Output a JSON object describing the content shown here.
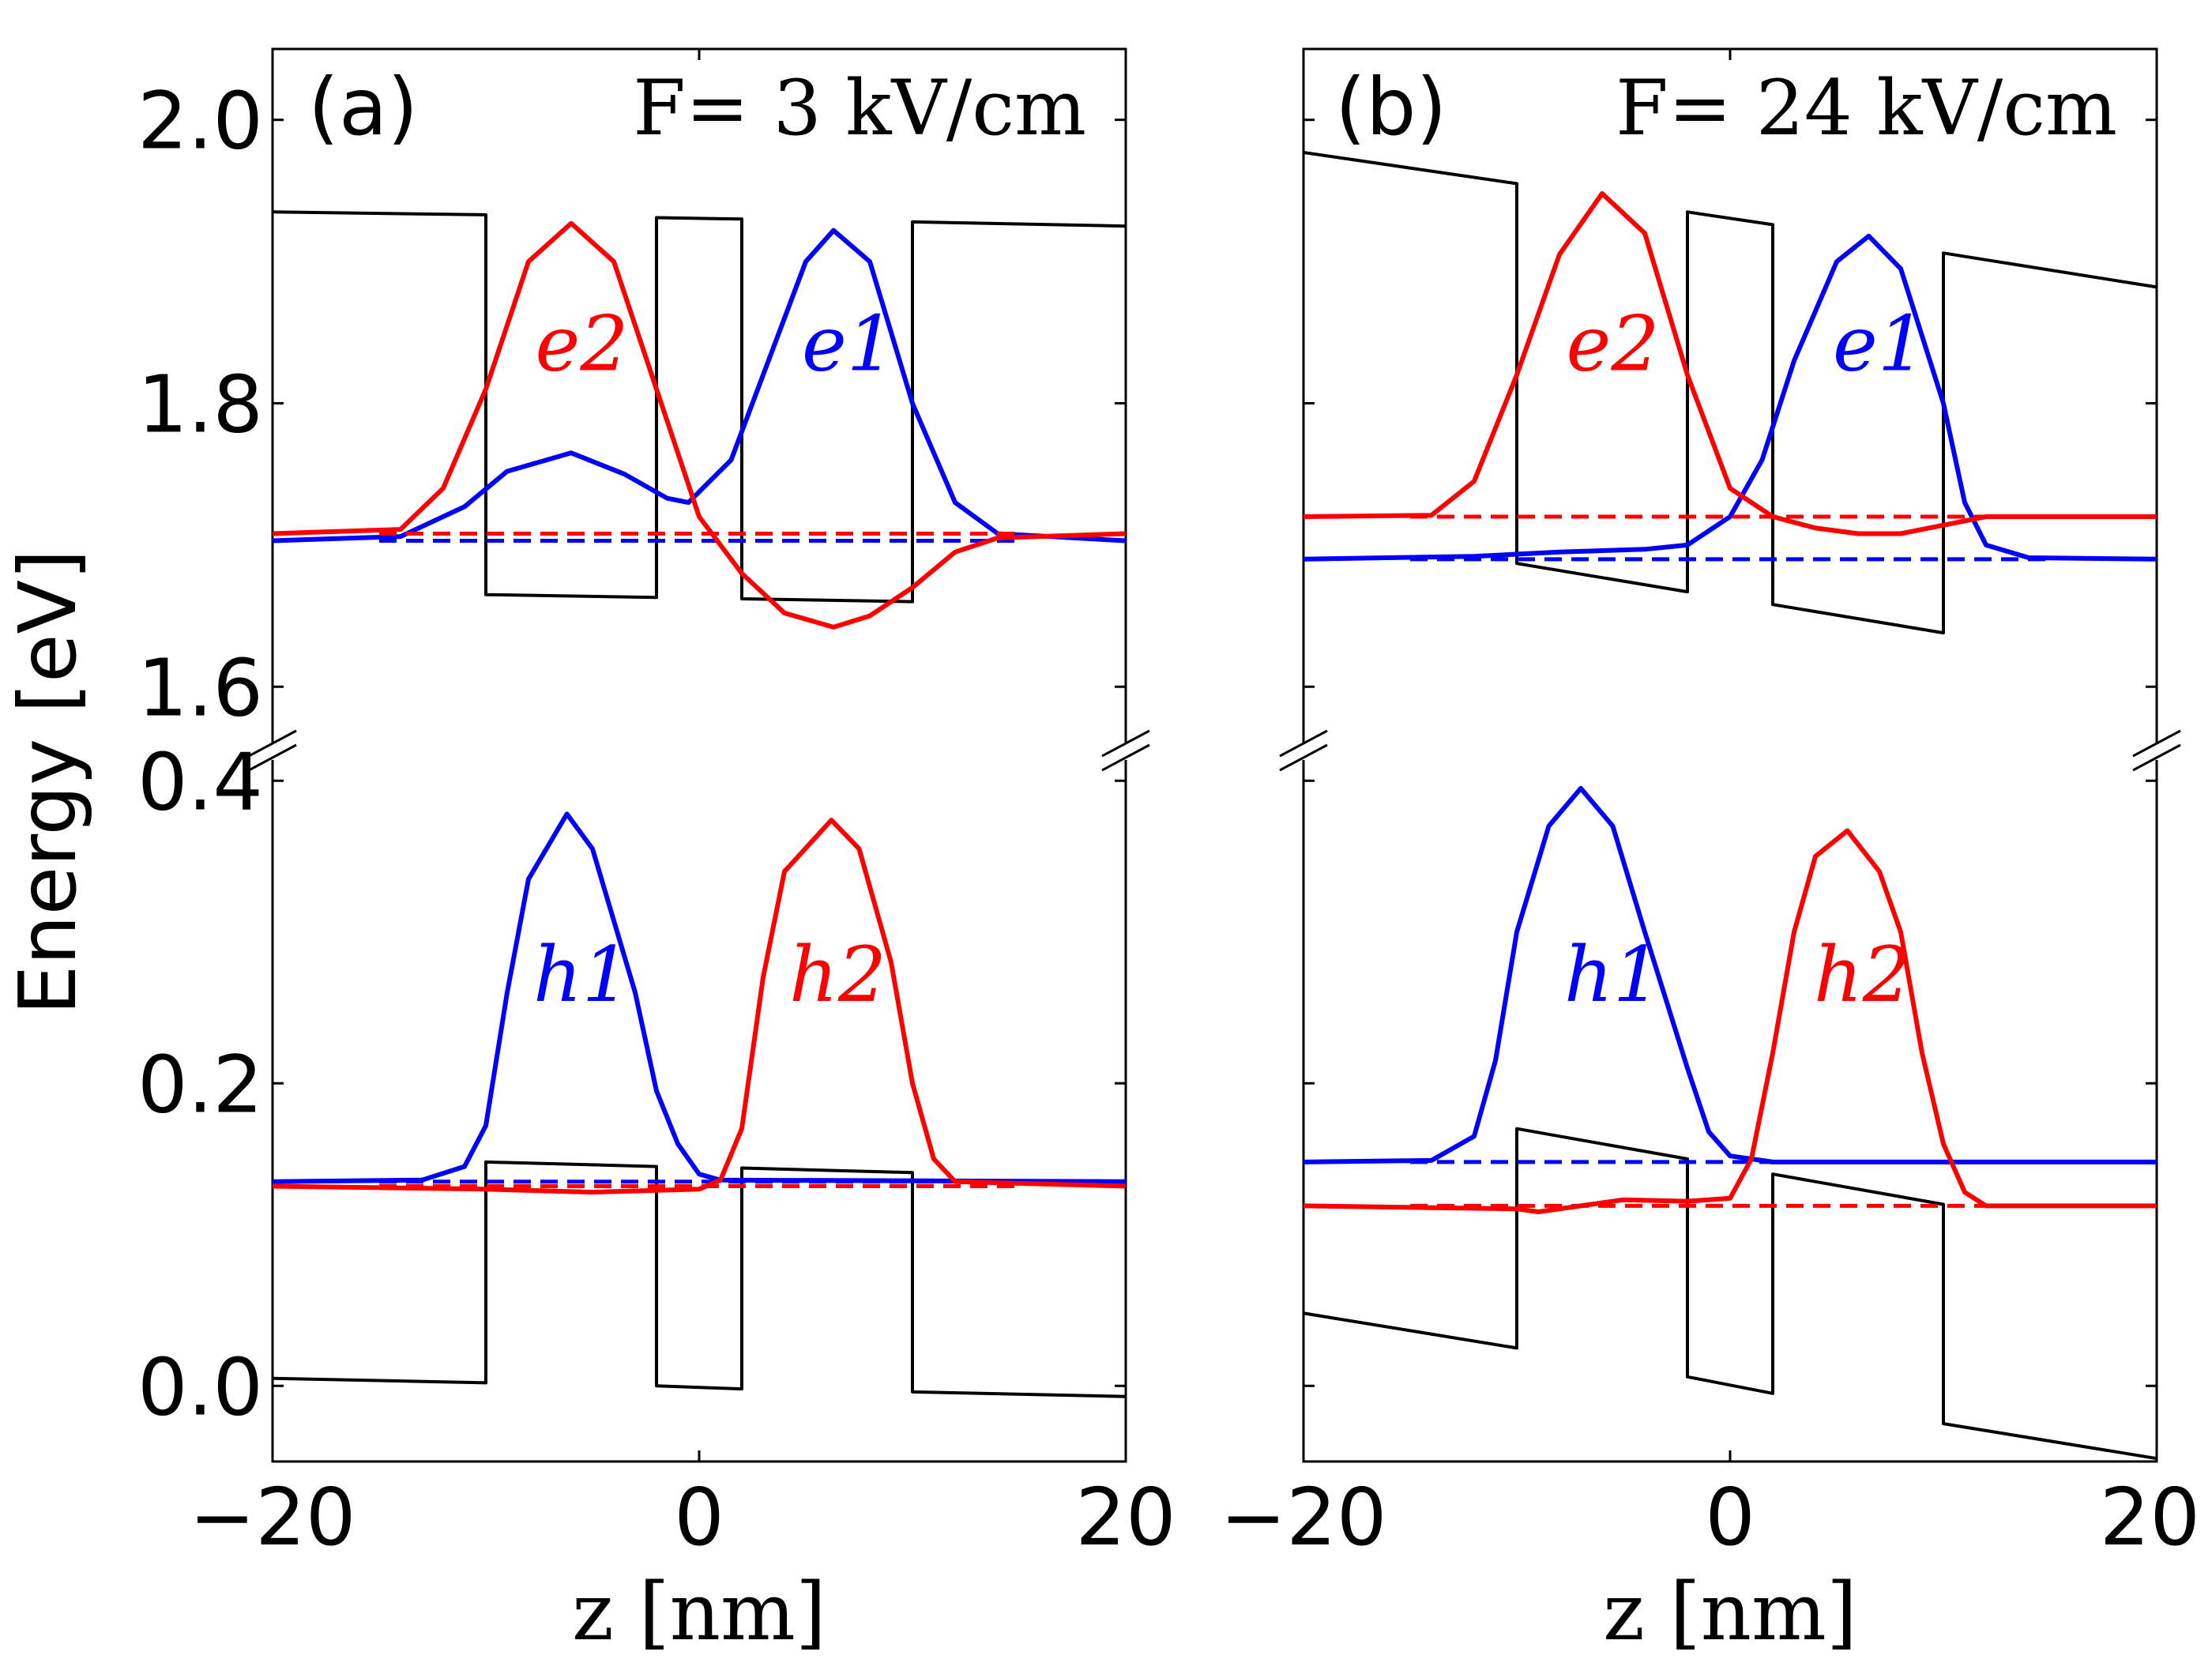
{
  "chart_data": {
    "type": "line",
    "ylabel": "Energy [eV]",
    "colors": {
      "potential": "#000000",
      "state1": "#0000ff",
      "state2": "#ff0000"
    },
    "panels": [
      {
        "label": "(a)",
        "field_text": "F= 3 kV/cm",
        "xlabel": "z [nm]",
        "xlim": [
          -20,
          20
        ],
        "x_ticks": [
          -20,
          0,
          20
        ],
        "x_tick_labels": [
          "−20",
          "0",
          "20"
        ],
        "upper_ylim": [
          1.555,
          2.05
        ],
        "upper_y_ticks": [
          1.6,
          1.8,
          2.0
        ],
        "upper_y_tick_labels": [
          "1.6",
          "1.8",
          "2.0"
        ],
        "lower_ylim": [
          -0.05,
          0.42
        ],
        "lower_y_ticks": [
          0.0,
          0.2,
          0.4
        ],
        "lower_y_tick_labels": [
          "0.0",
          "0.2",
          "0.4"
        ],
        "conduction_band": [
          [
            -20,
            1.935
          ],
          [
            -10,
            1.933
          ],
          [
            -10,
            1.665
          ],
          [
            -2,
            1.663
          ],
          [
            -2,
            1.931
          ],
          [
            2,
            1.93
          ],
          [
            2,
            1.662
          ],
          [
            10,
            1.66
          ],
          [
            10,
            1.928
          ],
          [
            20,
            1.925
          ]
        ],
        "valence_band": [
          [
            -20,
            0.005
          ],
          [
            -10,
            0.002
          ],
          [
            -10,
            0.148
          ],
          [
            -2,
            0.145
          ],
          [
            -2,
            0.0
          ],
          [
            2,
            -0.002
          ],
          [
            2,
            0.144
          ],
          [
            10,
            0.141
          ],
          [
            10,
            -0.004
          ],
          [
            20,
            -0.007
          ]
        ],
        "electron_levels": [
          {
            "name": "e1",
            "energy": 1.703,
            "color": "#0000ff",
            "label_pos": [
              7,
              1.84
            ],
            "points": [
              [
                -20,
                1.703
              ],
              [
                -14,
                1.706
              ],
              [
                -11,
                1.727
              ],
              [
                -9,
                1.752
              ],
              [
                -6,
                1.765
              ],
              [
                -3.5,
                1.75
              ],
              [
                -1.5,
                1.733
              ],
              [
                -0.5,
                1.73
              ],
              [
                1.5,
                1.76
              ],
              [
                3,
                1.82
              ],
              [
                5,
                1.9
              ],
              [
                6.3,
                1.922
              ],
              [
                8,
                1.9
              ],
              [
                10,
                1.8
              ],
              [
                12,
                1.73
              ],
              [
                14,
                1.708
              ],
              [
                20,
                1.703
              ]
            ]
          },
          {
            "name": "e2",
            "energy": 1.708,
            "color": "#ff0000",
            "label_pos": [
              -5.5,
              1.84
            ],
            "points": [
              [
                -20,
                1.708
              ],
              [
                -14,
                1.711
              ],
              [
                -12,
                1.74
              ],
              [
                -10,
                1.81
              ],
              [
                -8,
                1.9
              ],
              [
                -6,
                1.927
              ],
              [
                -4,
                1.9
              ],
              [
                -2,
                1.81
              ],
              [
                0,
                1.72
              ],
              [
                2,
                1.68
              ],
              [
                4,
                1.652
              ],
              [
                6.3,
                1.642
              ],
              [
                8,
                1.65
              ],
              [
                10,
                1.67
              ],
              [
                12,
                1.695
              ],
              [
                14,
                1.705
              ],
              [
                20,
                1.708
              ]
            ]
          }
        ],
        "hole_levels": [
          {
            "name": "h1",
            "energy": 0.135,
            "color": "#0000ff",
            "label_pos": [
              -5.5,
              0.27
            ],
            "points": [
              [
                -20,
                0.135
              ],
              [
                -13,
                0.136
              ],
              [
                -11,
                0.145
              ],
              [
                -10,
                0.172
              ],
              [
                -9,
                0.26
              ],
              [
                -8,
                0.335
              ],
              [
                -6.2,
                0.378
              ],
              [
                -5,
                0.355
              ],
              [
                -3,
                0.26
              ],
              [
                -2,
                0.195
              ],
              [
                -1,
                0.16
              ],
              [
                0,
                0.14
              ],
              [
                1,
                0.136
              ],
              [
                20,
                0.135
              ]
            ]
          },
          {
            "name": "h2",
            "energy": 0.132,
            "color": "#ff0000",
            "label_pos": [
              6.5,
              0.27
            ],
            "points": [
              [
                -20,
                0.132
              ],
              [
                -10,
                0.13
              ],
              [
                -5,
                0.128
              ],
              [
                0,
                0.13
              ],
              [
                1,
                0.136
              ],
              [
                2,
                0.17
              ],
              [
                3,
                0.27
              ],
              [
                4,
                0.34
              ],
              [
                6.2,
                0.374
              ],
              [
                7.5,
                0.355
              ],
              [
                9,
                0.28
              ],
              [
                10,
                0.2
              ],
              [
                11,
                0.15
              ],
              [
                12,
                0.135
              ],
              [
                20,
                0.132
              ]
            ]
          }
        ]
      },
      {
        "label": "(b)",
        "field_text": "F= 24 kV/cm",
        "xlabel": "z [nm]",
        "xlim": [
          -20,
          20
        ],
        "x_ticks": [
          -20,
          0,
          20
        ],
        "x_tick_labels": [
          "−20",
          "0",
          "20"
        ],
        "upper_ylim": [
          1.555,
          2.05
        ],
        "upper_y_ticks": [
          1.6,
          1.8,
          2.0
        ],
        "upper_y_tick_labels": [
          "",
          "",
          ""
        ],
        "lower_ylim": [
          -0.05,
          0.42
        ],
        "lower_y_ticks": [
          0.0,
          0.2,
          0.4
        ],
        "lower_y_tick_labels": [
          "",
          "",
          ""
        ],
        "conduction_band": [
          [
            -20,
            1.977
          ],
          [
            -10,
            1.955
          ],
          [
            -10,
            1.687
          ],
          [
            -2,
            1.667
          ],
          [
            -2,
            1.935
          ],
          [
            2,
            1.926
          ],
          [
            2,
            1.658
          ],
          [
            10,
            1.638
          ],
          [
            10,
            1.906
          ],
          [
            20,
            1.882
          ]
        ],
        "valence_band": [
          [
            -20,
            0.048
          ],
          [
            -10,
            0.025
          ],
          [
            -10,
            0.17
          ],
          [
            -2,
            0.15
          ],
          [
            -2,
            0.006
          ],
          [
            2,
            -0.005
          ],
          [
            2,
            0.14
          ],
          [
            10,
            0.12
          ],
          [
            10,
            -0.025
          ],
          [
            20,
            -0.048
          ]
        ],
        "electron_levels": [
          {
            "name": "e1",
            "energy": 1.69,
            "color": "#0000ff",
            "label_pos": [
              7,
              1.84
            ],
            "points": [
              [
                -20,
                1.69
              ],
              [
                -12,
                1.692
              ],
              [
                -8,
                1.695
              ],
              [
                -4,
                1.697
              ],
              [
                -2,
                1.7
              ],
              [
                0,
                1.72
              ],
              [
                1.5,
                1.76
              ],
              [
                3,
                1.83
              ],
              [
                5,
                1.9
              ],
              [
                6.5,
                1.918
              ],
              [
                8,
                1.895
              ],
              [
                10,
                1.8
              ],
              [
                11,
                1.73
              ],
              [
                12,
                1.7
              ],
              [
                14,
                1.691
              ],
              [
                20,
                1.69
              ]
            ]
          },
          {
            "name": "e2",
            "energy": 1.72,
            "color": "#ff0000",
            "label_pos": [
              -5.5,
              1.84
            ],
            "points": [
              [
                -20,
                1.72
              ],
              [
                -14,
                1.721
              ],
              [
                -12,
                1.745
              ],
              [
                -10,
                1.82
              ],
              [
                -8,
                1.905
              ],
              [
                -6,
                1.948
              ],
              [
                -4,
                1.92
              ],
              [
                -2,
                1.82
              ],
              [
                0,
                1.74
              ],
              [
                2,
                1.72
              ],
              [
                4,
                1.712
              ],
              [
                6,
                1.708
              ],
              [
                8,
                1.708
              ],
              [
                10,
                1.714
              ],
              [
                12,
                1.72
              ],
              [
                20,
                1.72
              ]
            ]
          }
        ],
        "hole_levels": [
          {
            "name": "h1",
            "energy": 0.148,
            "color": "#0000ff",
            "label_pos": [
              -5.5,
              0.27
            ],
            "points": [
              [
                -20,
                0.148
              ],
              [
                -14,
                0.149
              ],
              [
                -12,
                0.165
              ],
              [
                -11,
                0.215
              ],
              [
                -10,
                0.3
              ],
              [
                -8.5,
                0.37
              ],
              [
                -7,
                0.395
              ],
              [
                -5.5,
                0.37
              ],
              [
                -4,
                0.3
              ],
              [
                -2,
                0.21
              ],
              [
                -1,
                0.168
              ],
              [
                0,
                0.152
              ],
              [
                2,
                0.148
              ],
              [
                20,
                0.148
              ]
            ]
          },
          {
            "name": "h2",
            "energy": 0.119,
            "color": "#ff0000",
            "label_pos": [
              6.2,
              0.27
            ],
            "points": [
              [
                -20,
                0.119
              ],
              [
                -10,
                0.117
              ],
              [
                -9,
                0.115
              ],
              [
                -7,
                0.119
              ],
              [
                -5,
                0.123
              ],
              [
                -2,
                0.122
              ],
              [
                0,
                0.124
              ],
              [
                1,
                0.15
              ],
              [
                2,
                0.22
              ],
              [
                3,
                0.3
              ],
              [
                4,
                0.35
              ],
              [
                5.5,
                0.367
              ],
              [
                7,
                0.34
              ],
              [
                8,
                0.3
              ],
              [
                9,
                0.22
              ],
              [
                10,
                0.16
              ],
              [
                11,
                0.128
              ],
              [
                12,
                0.119
              ],
              [
                20,
                0.119
              ]
            ]
          }
        ]
      }
    ]
  }
}
